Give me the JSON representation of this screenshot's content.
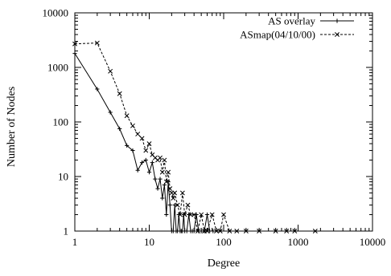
{
  "chart_data": {
    "type": "line",
    "title": "",
    "xlabel": "Degree",
    "ylabel": "Number of Nodes",
    "xscale": "log",
    "yscale": "log",
    "xlim": [
      1,
      10000
    ],
    "ylim": [
      1,
      10000
    ],
    "grid": false,
    "legend_position": "top-right",
    "x_ticks": [
      "1",
      "10",
      "100",
      "1000",
      "10000"
    ],
    "y_ticks": [
      "1",
      "10",
      "100",
      "1000",
      "10000"
    ],
    "series": [
      {
        "name": "AS overlay",
        "style": "solid",
        "marker": "plus",
        "x": [
          1,
          2,
          3,
          4,
          5,
          6,
          7,
          8,
          9,
          10,
          11,
          12,
          13,
          14,
          15,
          16,
          17,
          18,
          19,
          20,
          21,
          22,
          23,
          24,
          25,
          26,
          27,
          28,
          29,
          30,
          32,
          34,
          36,
          38,
          40,
          43,
          46,
          50,
          55,
          60,
          65,
          72
        ],
        "y": [
          1800,
          400,
          150,
          75,
          37,
          30,
          13,
          18,
          20,
          12,
          18,
          9,
          6,
          9,
          4,
          7,
          2,
          8,
          3,
          1,
          1,
          3,
          1,
          1,
          2,
          1,
          1,
          1,
          2,
          1,
          1,
          2,
          1,
          1,
          1,
          2,
          1,
          1,
          1,
          2,
          1,
          1
        ]
      },
      {
        "name": "ASmap(04/10/00)",
        "style": "dashed",
        "marker": "x",
        "x": [
          1,
          2,
          3,
          4,
          5,
          6,
          7,
          8,
          9,
          10,
          11,
          12,
          13,
          14,
          15,
          16,
          17,
          18,
          19,
          20,
          21,
          22,
          24,
          26,
          28,
          30,
          33,
          36,
          40,
          45,
          50,
          55,
          60,
          70,
          80,
          90,
          100,
          120,
          150,
          200,
          300,
          500,
          700,
          900,
          1700
        ],
        "y": [
          2700,
          2800,
          850,
          330,
          130,
          85,
          60,
          50,
          30,
          40,
          25,
          22,
          20,
          22,
          12,
          20,
          8,
          12,
          6,
          5,
          4,
          5,
          3,
          2,
          5,
          2,
          3,
          2,
          2,
          1,
          2,
          1,
          1,
          2,
          1,
          1,
          2,
          1,
          1,
          1,
          1,
          1,
          1,
          1,
          1
        ]
      }
    ]
  }
}
